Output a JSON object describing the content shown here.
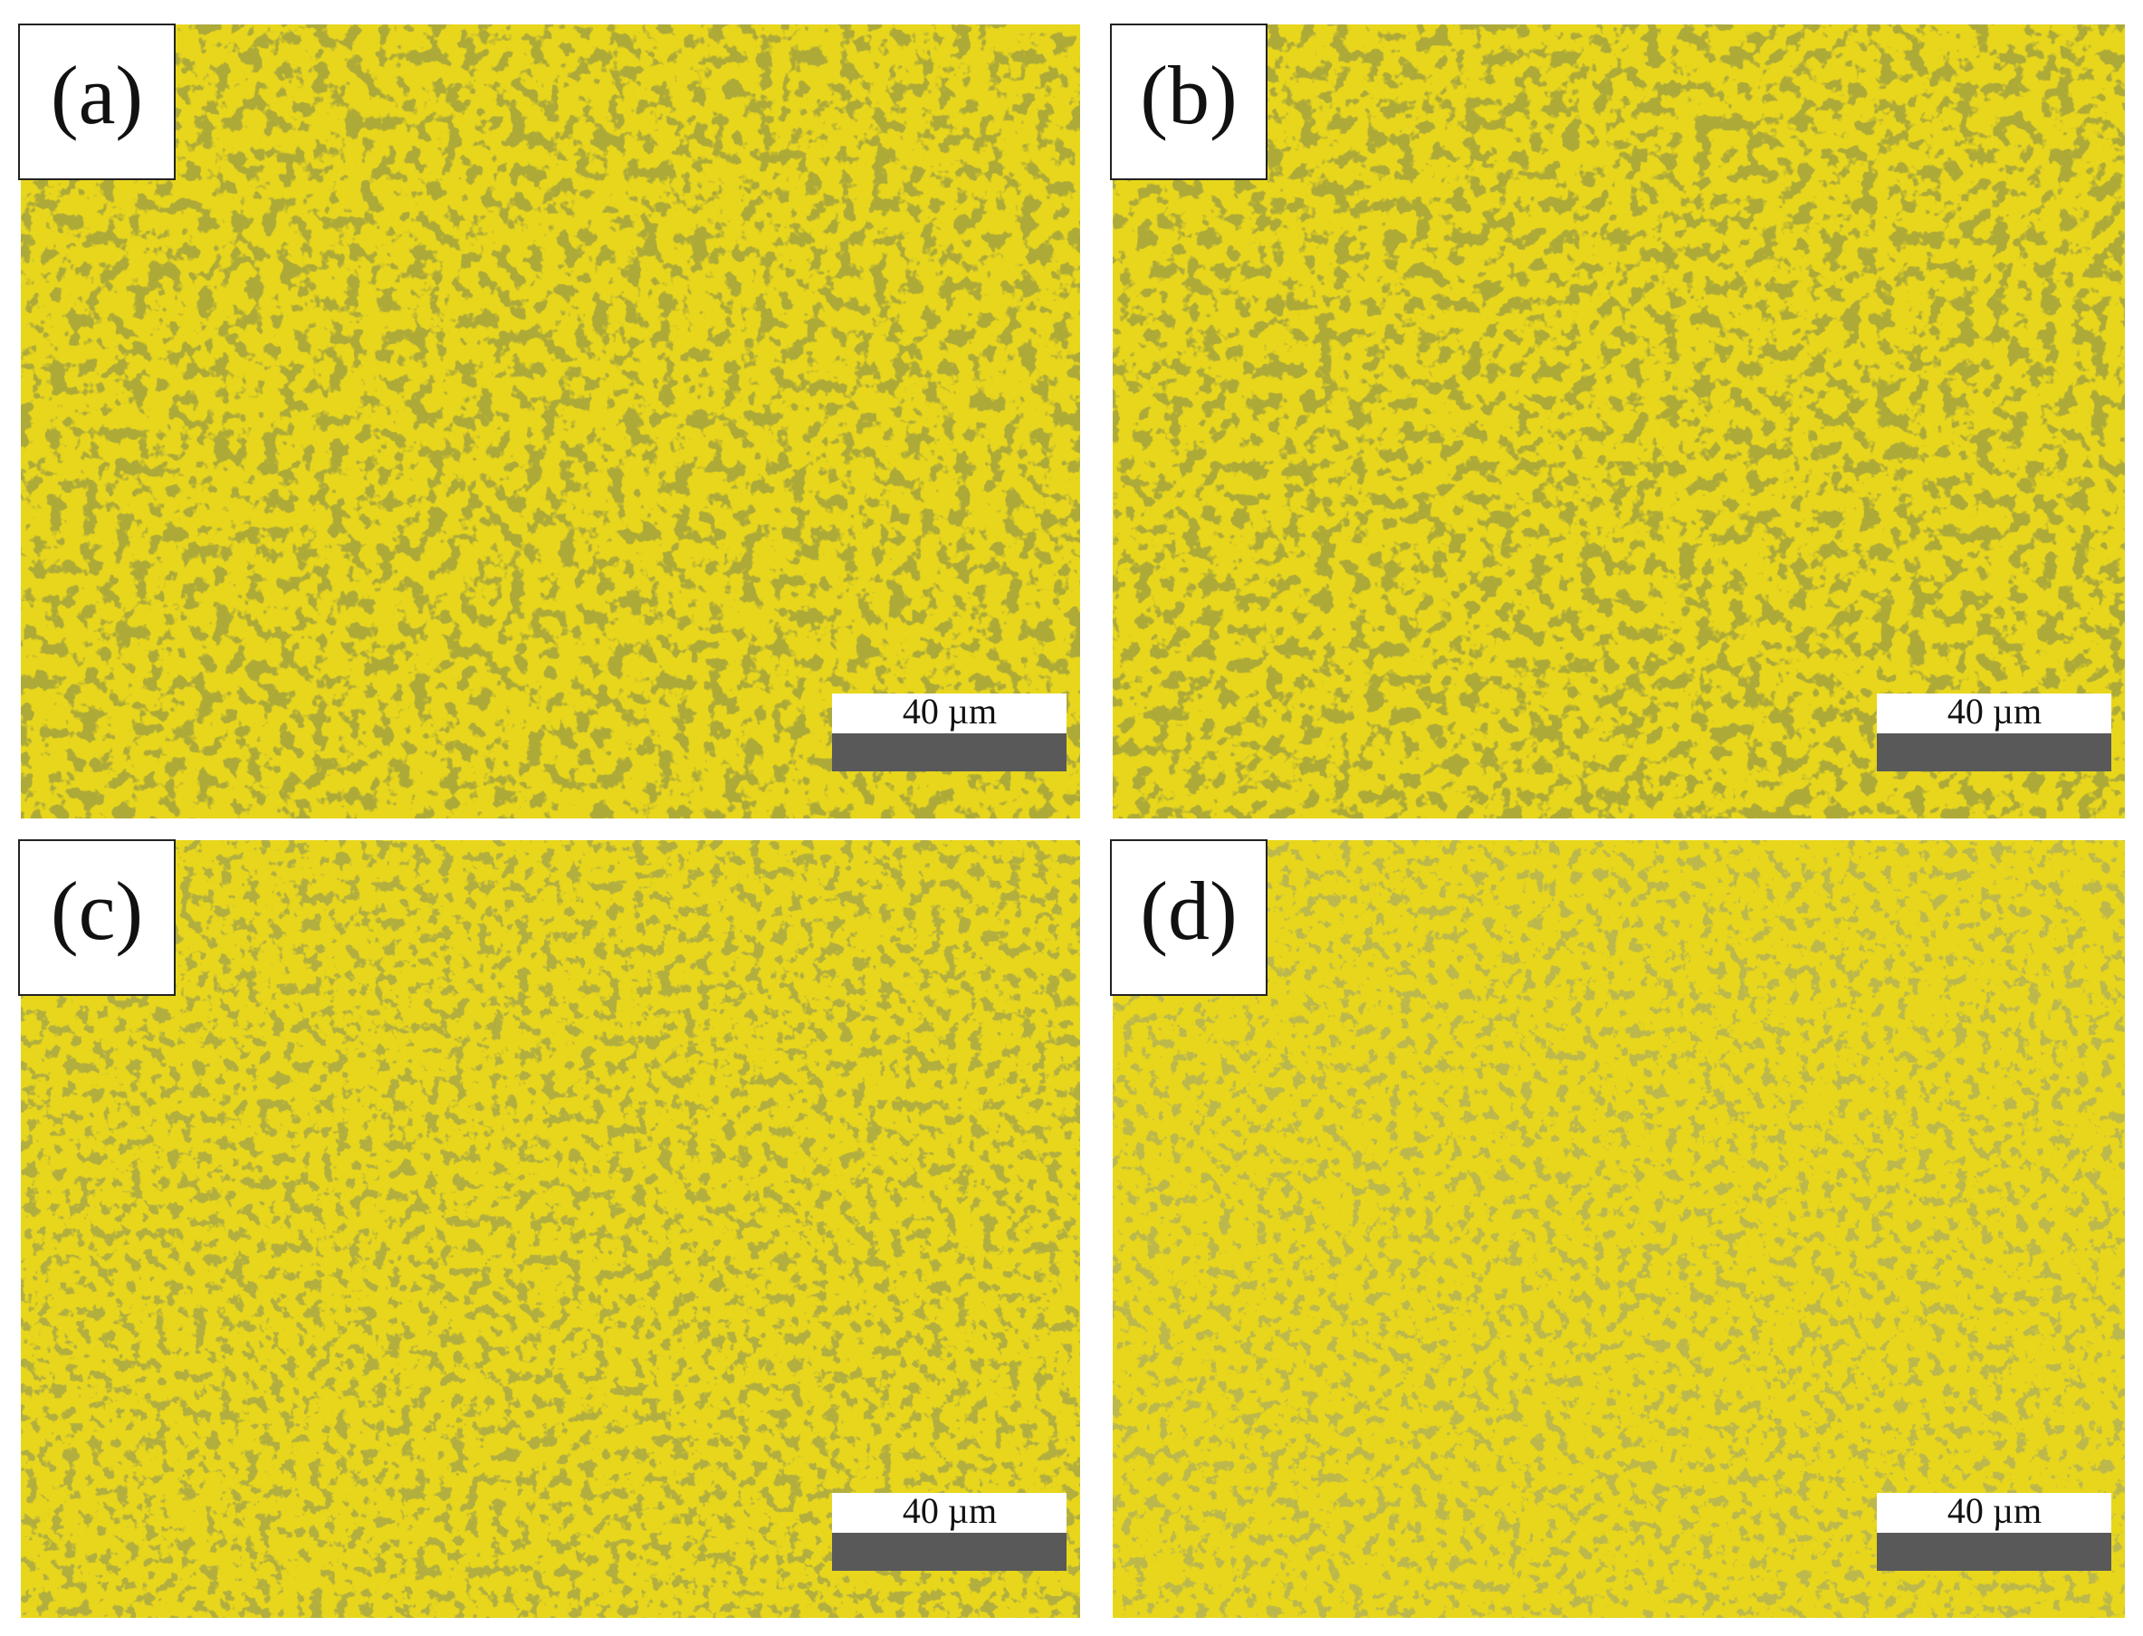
{
  "panels": [
    {
      "label": "(a)",
      "scale_bar": "40 µm"
    },
    {
      "label": "(b)",
      "scale_bar": "40 µm"
    },
    {
      "label": "(c)",
      "scale_bar": "40 µm"
    },
    {
      "label": "(d)",
      "scale_bar": "40 µm"
    }
  ]
}
